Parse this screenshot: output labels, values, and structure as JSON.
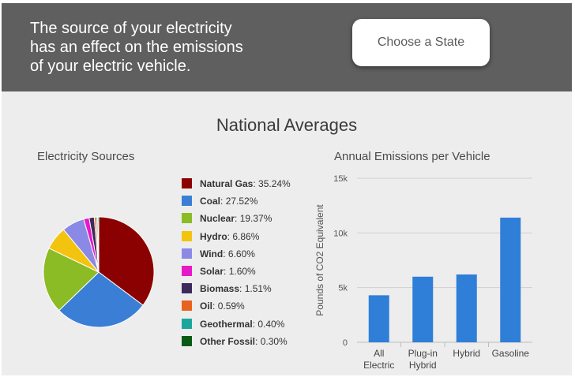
{
  "header": {
    "lines": [
      "The source of your electricity",
      "has an effect on the emissions",
      "of your electric vehicle."
    ],
    "button_label": "Choose a State"
  },
  "section_title": "National Averages",
  "colors": {
    "header_bg": "#5f5f5f",
    "panel_bg": "#ededed",
    "bar": "#2f7ed8"
  },
  "chart_data": [
    {
      "type": "pie",
      "title": "Electricity Sources",
      "slices": [
        {
          "name": "Natural Gas",
          "label": "35.24%",
          "value": 35.24,
          "color": "#8b0000"
        },
        {
          "name": "Coal",
          "label": "27.52%",
          "value": 27.52,
          "color": "#3a7fd5"
        },
        {
          "name": "Nuclear",
          "label": "19.37%",
          "value": 19.37,
          "color": "#8bbb25"
        },
        {
          "name": "Hydro",
          "label": "6.86%",
          "value": 6.86,
          "color": "#f2c40f"
        },
        {
          "name": "Wind",
          "label": "6.60%",
          "value": 6.6,
          "color": "#8a8ae6"
        },
        {
          "name": "Solar",
          "label": "1.60%",
          "value": 1.6,
          "color": "#e619c8"
        },
        {
          "name": "Biomass",
          "label": "1.51%",
          "value": 1.51,
          "color": "#3d2a5c"
        },
        {
          "name": "Oil",
          "label": "0.59%",
          "value": 0.59,
          "color": "#e8641e"
        },
        {
          "name": "Geothermal",
          "label": "0.40%",
          "value": 0.4,
          "color": "#1aa69a"
        },
        {
          "name": "Other Fossil",
          "label": "0.30%",
          "value": 0.3,
          "color": "#0b5a14"
        }
      ]
    },
    {
      "type": "bar",
      "title": "Annual Emissions per Vehicle",
      "ylabel": "Pounds of CO2 Equivalent",
      "categories": [
        [
          "All",
          "Electric"
        ],
        [
          "Plug-in",
          "Hybrid"
        ],
        [
          "Hybrid"
        ],
        [
          "Gasoline"
        ]
      ],
      "values": [
        4300,
        6000,
        6200,
        11400
      ],
      "ylim": [
        0,
        15000
      ],
      "yticks": [
        0,
        5000,
        10000,
        15000
      ],
      "ytick_labels": [
        "0",
        "5k",
        "10k",
        "15k"
      ],
      "grid": true
    }
  ]
}
